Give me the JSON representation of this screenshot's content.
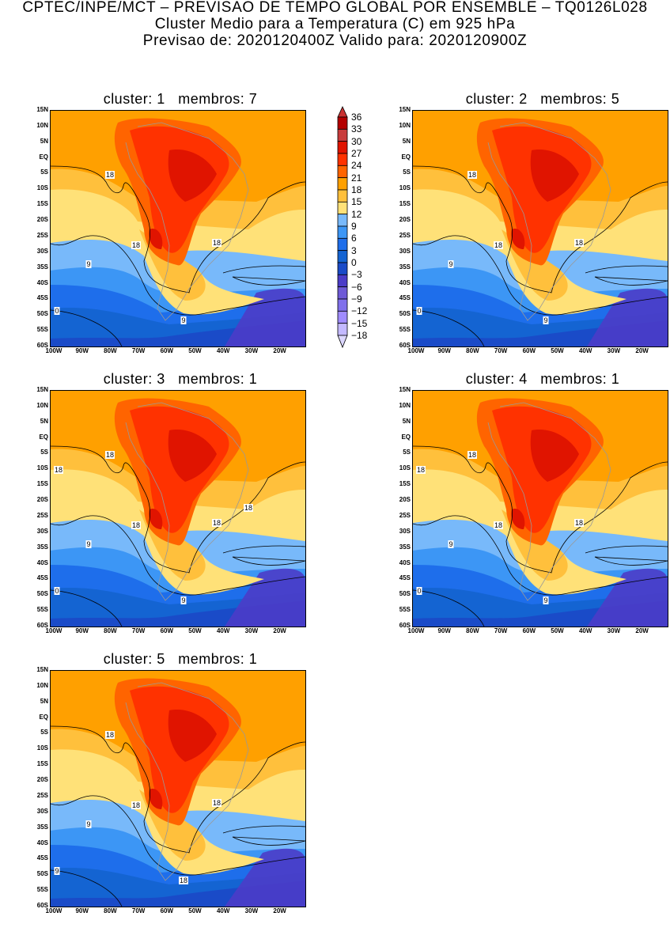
{
  "header": {
    "line1": "CPTEC/INPE/MCT – PREVISAO DE TEMPO GLOBAL POR ENSEMBLE – TQ0126L028",
    "line2": "Cluster Medio para a Temperatura (C) em 925 hPa",
    "line3": "Previsao de: 2020120400Z    Valido para: 2020120900Z"
  },
  "panel_labels": {
    "cluster": "cluster:",
    "membros": "membros:"
  },
  "panels": [
    {
      "cluster": "1",
      "membros": "7",
      "contour_labels": [
        "18",
        "18",
        "18",
        "9",
        "0",
        "9"
      ]
    },
    {
      "cluster": "2",
      "membros": "5",
      "contour_labels": [
        "18",
        "18",
        "18",
        "9",
        "0",
        "9"
      ]
    },
    {
      "cluster": "3",
      "membros": "1",
      "contour_labels": [
        "18",
        "18",
        "18",
        "9",
        "0",
        "9",
        "18",
        "18"
      ]
    },
    {
      "cluster": "4",
      "membros": "1",
      "contour_labels": [
        "18",
        "18",
        "18",
        "9",
        "0",
        "9",
        "18"
      ]
    },
    {
      "cluster": "5",
      "membros": "1",
      "contour_labels": [
        "18",
        "18",
        "18",
        "9",
        "9",
        "18"
      ]
    }
  ],
  "lat_ticks": [
    "15N",
    "10N",
    "5N",
    "EQ",
    "5S",
    "10S",
    "15S",
    "20S",
    "25S",
    "30S",
    "35S",
    "40S",
    "45S",
    "50S",
    "55S",
    "60S"
  ],
  "lon_ticks": [
    "100W",
    "90W",
    "80W",
    "70W",
    "60W",
    "50W",
    "40W",
    "30W",
    "20W"
  ],
  "colorbar": {
    "labels": [
      "36",
      "33",
      "30",
      "27",
      "24",
      "21",
      "18",
      "15",
      "12",
      "9",
      "6",
      "3",
      "0",
      "−3",
      "−6",
      "−9",
      "−12",
      "−15",
      "−18"
    ],
    "colors": [
      "#b40000",
      "#c83c3c",
      "#e01400",
      "#ff3200",
      "#ff6400",
      "#ffa000",
      "#ffc03c",
      "#ffe178",
      "#78b9fa",
      "#3c96f5",
      "#1e6eeb",
      "#1464d2",
      "#1a4bc8",
      "#4b3cc8",
      "#6e5ad7",
      "#8070eb",
      "#a08cff",
      "#c3b9ff"
    ],
    "over_color": "#c83232",
    "under_color": "#dcd7ff"
  }
}
